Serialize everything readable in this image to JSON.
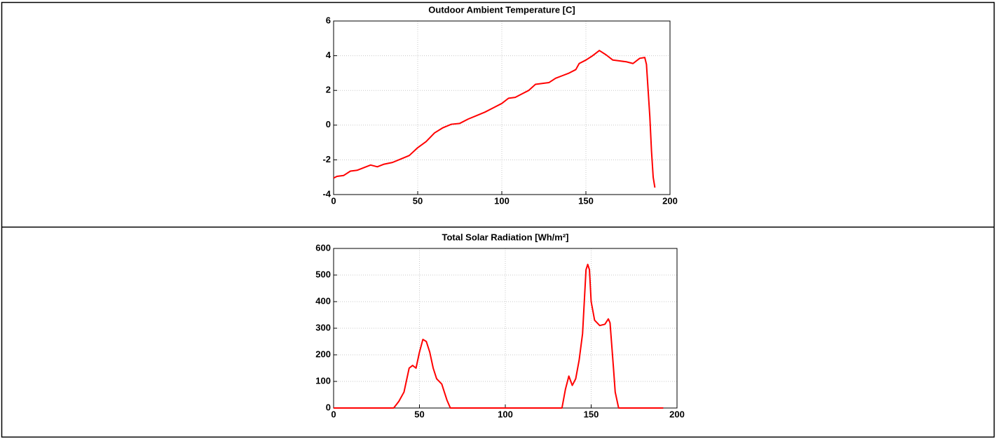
{
  "chart_data": [
    {
      "type": "line",
      "title": "Outdoor Ambient Temperature [C]",
      "color": "#ff0000",
      "grid": true,
      "x": [
        0,
        2,
        6,
        10,
        14,
        18,
        22,
        26,
        30,
        35,
        40,
        45,
        50,
        55,
        60,
        65,
        70,
        75,
        80,
        85,
        90,
        95,
        100,
        104,
        108,
        112,
        116,
        120,
        124,
        128,
        132,
        136,
        140,
        144,
        146,
        150,
        154,
        158,
        162,
        166,
        170,
        174,
        178,
        182,
        185,
        186,
        188,
        189,
        190,
        191
      ],
      "values": [
        -3.05,
        -2.95,
        -2.9,
        -2.65,
        -2.6,
        -2.45,
        -2.3,
        -2.4,
        -2.25,
        -2.15,
        -1.95,
        -1.75,
        -1.3,
        -0.95,
        -0.45,
        -0.15,
        0.05,
        0.1,
        0.35,
        0.55,
        0.75,
        1.0,
        1.25,
        1.55,
        1.6,
        1.8,
        2.0,
        2.35,
        2.4,
        2.45,
        2.7,
        2.85,
        3.0,
        3.2,
        3.55,
        3.75,
        4.0,
        4.3,
        4.05,
        3.75,
        3.7,
        3.65,
        3.55,
        3.85,
        3.9,
        3.5,
        0.5,
        -1.5,
        -3.0,
        -3.6
      ],
      "xlim": [
        0,
        200
      ],
      "xticks": [
        0,
        50,
        100,
        150,
        200
      ],
      "ylim": [
        -4,
        6
      ],
      "yticks": [
        -4,
        -2,
        0,
        2,
        4,
        6
      ]
    },
    {
      "type": "line",
      "title": "Total Solar Radiation [Wh/m²]",
      "color": "#ff0000",
      "grid": true,
      "x": [
        0,
        35,
        38,
        41,
        44,
        46,
        48,
        50,
        52,
        54,
        56,
        58,
        60,
        63,
        66,
        68,
        130,
        133,
        135,
        137,
        139,
        141,
        143,
        145,
        147,
        148,
        149,
        150,
        152,
        155,
        158,
        160,
        161,
        163,
        164,
        166,
        192
      ],
      "values": [
        0,
        0,
        25,
        60,
        150,
        160,
        150,
        210,
        258,
        250,
        210,
        150,
        110,
        90,
        30,
        0,
        0,
        0,
        70,
        120,
        85,
        110,
        180,
        280,
        520,
        540,
        520,
        400,
        330,
        310,
        315,
        335,
        320,
        150,
        60,
        0,
        0
      ],
      "xlim": [
        0,
        200
      ],
      "xticks": [
        0,
        50,
        100,
        150,
        200
      ],
      "ylim": [
        0,
        600
      ],
      "yticks": [
        0,
        100,
        200,
        300,
        400,
        500,
        600
      ]
    }
  ]
}
